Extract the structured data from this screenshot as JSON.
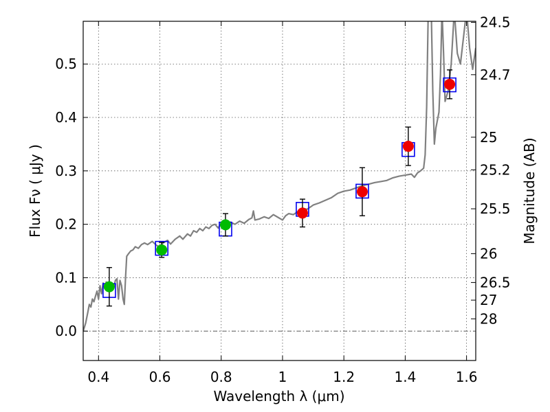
{
  "chart_data": {
    "type": "scatter",
    "title": "",
    "xlabel": "Wavelength  λ (μm)",
    "ylabel": "Flux  Fν  ( μJy )",
    "y2label": "Magnitude (AB)",
    "xlim": [
      0.35,
      1.63
    ],
    "ylim": [
      -0.055,
      0.58
    ],
    "grid": true,
    "x_ticks": [
      {
        "value": 0.4,
        "label": "0.4"
      },
      {
        "value": 0.6,
        "label": "0.6"
      },
      {
        "value": 0.8,
        "label": "0.8"
      },
      {
        "value": 1.0,
        "label": "1"
      },
      {
        "value": 1.2,
        "label": "1.2"
      },
      {
        "value": 1.4,
        "label": "1.4"
      },
      {
        "value": 1.6,
        "label": "1.6"
      }
    ],
    "y_ticks": [
      {
        "value": 0.0,
        "label": "0.0"
      },
      {
        "value": 0.1,
        "label": "0.1"
      },
      {
        "value": 0.2,
        "label": "0.2"
      },
      {
        "value": 0.3,
        "label": "0.3"
      },
      {
        "value": 0.4,
        "label": "0.4"
      },
      {
        "value": 0.5,
        "label": "0.5"
      }
    ],
    "y2_ticks": [
      {
        "flux": 0.578,
        "label": "24.5"
      },
      {
        "flux": 0.48,
        "label": "24.7"
      },
      {
        "flux": 0.363,
        "label": "25"
      },
      {
        "flux": 0.302,
        "label": "25.2"
      },
      {
        "flux": 0.229,
        "label": "25.5"
      },
      {
        "flux": 0.145,
        "label": "26"
      },
      {
        "flux": 0.091,
        "label": "26.5"
      },
      {
        "flux": 0.058,
        "label": "27"
      },
      {
        "flux": 0.023,
        "label": "28"
      }
    ],
    "colors": {
      "sed_line": "#808080",
      "observed_optical": "#00bb00",
      "observed_nir": "#ee0000",
      "model_box": "#0000ee",
      "errorbar": "#000000",
      "grid": "#555555"
    },
    "series": [
      {
        "key": "observed",
        "points": [
          {
            "x": 0.435,
            "y": 0.083,
            "err": 0.036,
            "band": "optical"
          },
          {
            "x": 0.606,
            "y": 0.152,
            "err": 0.014,
            "band": "optical"
          },
          {
            "x": 0.814,
            "y": 0.199,
            "err": 0.021,
            "band": "optical"
          },
          {
            "x": 1.065,
            "y": 0.221,
            "err": 0.026,
            "band": "nir"
          },
          {
            "x": 1.26,
            "y": 0.261,
            "err": 0.045,
            "band": "nir"
          },
          {
            "x": 1.41,
            "y": 0.346,
            "err": 0.036,
            "band": "nir"
          },
          {
            "x": 1.545,
            "y": 0.462,
            "err": 0.027,
            "band": "nir"
          }
        ]
      },
      {
        "key": "model_photometry",
        "points": [
          {
            "x": 0.435,
            "y": 0.076
          },
          {
            "x": 0.606,
            "y": 0.155
          },
          {
            "x": 0.814,
            "y": 0.191
          },
          {
            "x": 1.065,
            "y": 0.228
          },
          {
            "x": 1.26,
            "y": 0.262
          },
          {
            "x": 1.41,
            "y": 0.34
          },
          {
            "x": 1.545,
            "y": 0.461
          }
        ]
      },
      {
        "key": "model_sed",
        "points": [
          [
            0.35,
            0.0
          ],
          [
            0.358,
            0.015
          ],
          [
            0.365,
            0.035
          ],
          [
            0.37,
            0.05
          ],
          [
            0.375,
            0.045
          ],
          [
            0.38,
            0.06
          ],
          [
            0.385,
            0.055
          ],
          [
            0.39,
            0.065
          ],
          [
            0.395,
            0.075
          ],
          [
            0.4,
            0.06
          ],
          [
            0.405,
            0.085
          ],
          [
            0.41,
            0.07
          ],
          [
            0.415,
            0.09
          ],
          [
            0.42,
            0.08
          ],
          [
            0.425,
            0.092
          ],
          [
            0.43,
            0.085
          ],
          [
            0.435,
            0.08
          ],
          [
            0.44,
            0.09
          ],
          [
            0.445,
            0.088
          ],
          [
            0.45,
            0.082
          ],
          [
            0.455,
            0.095
          ],
          [
            0.46,
            0.098
          ],
          [
            0.465,
            0.06
          ],
          [
            0.47,
            0.095
          ],
          [
            0.475,
            0.085
          ],
          [
            0.48,
            0.06
          ],
          [
            0.484,
            0.05
          ],
          [
            0.488,
            0.1
          ],
          [
            0.492,
            0.14
          ],
          [
            0.498,
            0.145
          ],
          [
            0.505,
            0.15
          ],
          [
            0.512,
            0.152
          ],
          [
            0.52,
            0.158
          ],
          [
            0.53,
            0.155
          ],
          [
            0.54,
            0.162
          ],
          [
            0.55,
            0.165
          ],
          [
            0.56,
            0.162
          ],
          [
            0.575,
            0.168
          ],
          [
            0.59,
            0.16
          ],
          [
            0.6,
            0.158
          ],
          [
            0.61,
            0.165
          ],
          [
            0.625,
            0.17
          ],
          [
            0.635,
            0.163
          ],
          [
            0.65,
            0.172
          ],
          [
            0.665,
            0.178
          ],
          [
            0.675,
            0.172
          ],
          [
            0.69,
            0.182
          ],
          [
            0.7,
            0.178
          ],
          [
            0.71,
            0.188
          ],
          [
            0.72,
            0.185
          ],
          [
            0.73,
            0.192
          ],
          [
            0.74,
            0.188
          ],
          [
            0.75,
            0.195
          ],
          [
            0.76,
            0.192
          ],
          [
            0.77,
            0.198
          ],
          [
            0.78,
            0.2
          ],
          [
            0.79,
            0.193
          ],
          [
            0.8,
            0.202
          ],
          [
            0.815,
            0.198
          ],
          [
            0.83,
            0.204
          ],
          [
            0.845,
            0.2
          ],
          [
            0.86,
            0.206
          ],
          [
            0.875,
            0.202
          ],
          [
            0.89,
            0.209
          ],
          [
            0.9,
            0.212
          ],
          [
            0.905,
            0.225
          ],
          [
            0.91,
            0.208
          ],
          [
            0.925,
            0.21
          ],
          [
            0.94,
            0.214
          ],
          [
            0.955,
            0.211
          ],
          [
            0.97,
            0.218
          ],
          [
            0.985,
            0.213
          ],
          [
            1.0,
            0.208
          ],
          [
            1.01,
            0.216
          ],
          [
            1.02,
            0.22
          ],
          [
            1.035,
            0.218
          ],
          [
            1.05,
            0.224
          ],
          [
            1.065,
            0.23
          ],
          [
            1.08,
            0.228
          ],
          [
            1.1,
            0.236
          ],
          [
            1.12,
            0.24
          ],
          [
            1.14,
            0.245
          ],
          [
            1.16,
            0.25
          ],
          [
            1.18,
            0.258
          ],
          [
            1.2,
            0.262
          ],
          [
            1.22,
            0.264
          ],
          [
            1.24,
            0.268
          ],
          [
            1.26,
            0.272
          ],
          [
            1.28,
            0.275
          ],
          [
            1.3,
            0.278
          ],
          [
            1.32,
            0.28
          ],
          [
            1.34,
            0.282
          ],
          [
            1.36,
            0.287
          ],
          [
            1.38,
            0.29
          ],
          [
            1.4,
            0.292
          ],
          [
            1.42,
            0.294
          ],
          [
            1.43,
            0.288
          ],
          [
            1.44,
            0.296
          ],
          [
            1.45,
            0.3
          ],
          [
            1.46,
            0.305
          ],
          [
            1.465,
            0.33
          ],
          [
            1.47,
            0.42
          ],
          [
            1.475,
            0.6
          ],
          [
            1.485,
            0.6
          ],
          [
            1.49,
            0.45
          ],
          [
            1.495,
            0.35
          ],
          [
            1.5,
            0.38
          ],
          [
            1.51,
            0.41
          ],
          [
            1.515,
            0.48
          ],
          [
            1.52,
            0.6
          ],
          [
            1.525,
            0.52
          ],
          [
            1.53,
            0.43
          ],
          [
            1.54,
            0.45
          ],
          [
            1.55,
            0.5
          ],
          [
            1.56,
            0.6
          ],
          [
            1.57,
            0.52
          ],
          [
            1.58,
            0.5
          ],
          [
            1.59,
            0.55
          ],
          [
            1.6,
            0.6
          ],
          [
            1.61,
            0.53
          ],
          [
            1.62,
            0.49
          ],
          [
            1.63,
            0.53
          ]
        ]
      }
    ]
  }
}
